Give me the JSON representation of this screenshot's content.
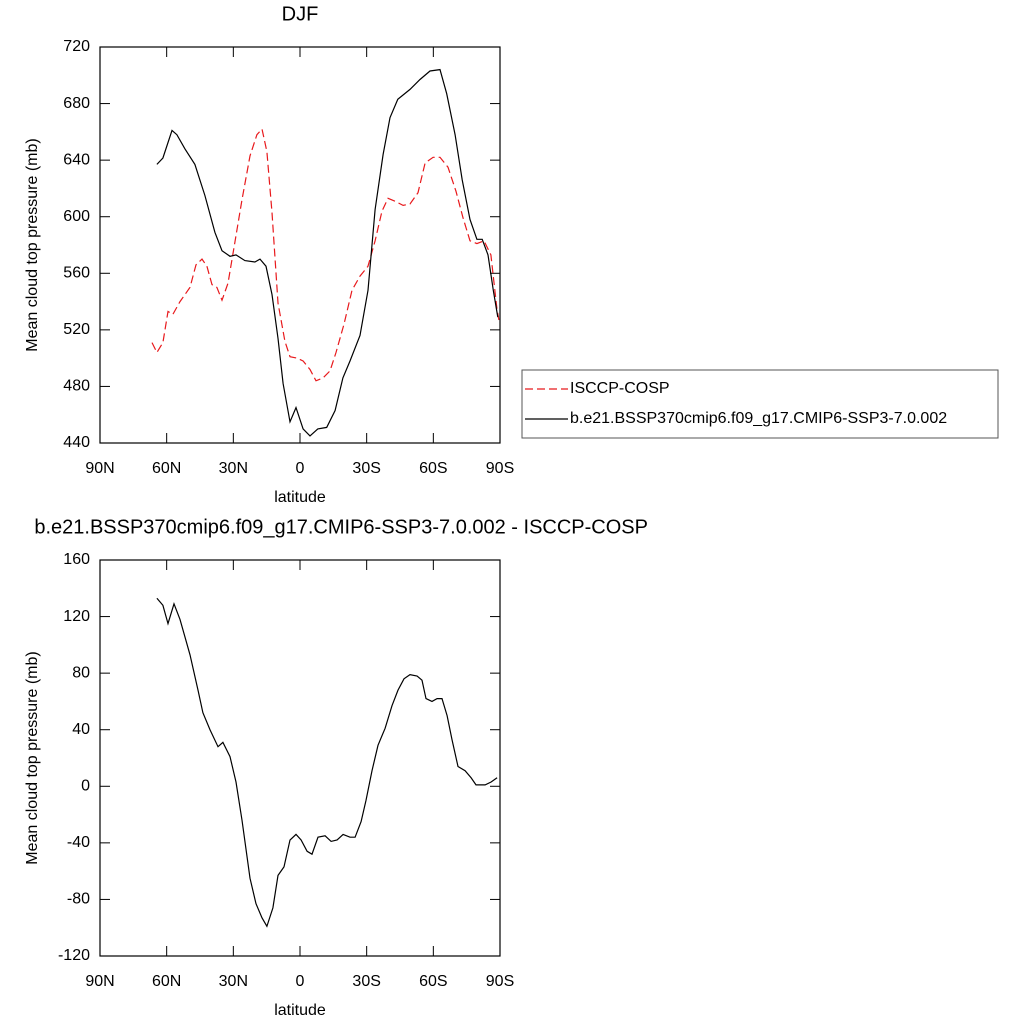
{
  "chart_data": [
    {
      "type": "line",
      "title": "DJF",
      "xlabel": "latitude",
      "ylabel": "Mean cloud top pressure (mb)",
      "xlim": [
        90,
        -90
      ],
      "xticks": [
        {
          "value": 90,
          "label": "90N"
        },
        {
          "value": 60,
          "label": "60N"
        },
        {
          "value": 30,
          "label": "30N"
        },
        0,
        {
          "value": -30,
          "label": "30S"
        },
        {
          "value": -60,
          "label": "60S"
        },
        {
          "value": -90,
          "label": "90S"
        }
      ],
      "ylim": [
        440,
        720
      ],
      "yticks": [
        440,
        480,
        520,
        560,
        600,
        640,
        680,
        720
      ],
      "legend": "right",
      "series": [
        {
          "name": "ISCCP-COSP",
          "color": "#e8191c",
          "dashed": true,
          "x": [
            66.6,
            64.4,
            61.7,
            59.4,
            57.2,
            54,
            49.5,
            46.8,
            44.1,
            41.9,
            39.6,
            37.4,
            35.1,
            32.4,
            29.3,
            26.1,
            22.5,
            19.4,
            17.1,
            14.9,
            12.6,
            9.9,
            6.8,
            4.5,
            1.4,
            -1.4,
            -4.5,
            -7.2,
            -10.4,
            -13.5,
            -16.2,
            -19.8,
            -23.4,
            -27,
            -30.6,
            -33.8,
            -36.9,
            -39.6,
            -42.8,
            -46.4,
            -49.5,
            -53.1,
            -56.3,
            -59.9,
            -63,
            -66.6,
            -70.2,
            -73.4,
            -76.5,
            -79.6,
            -82.8,
            -85.9,
            -88.6,
            -89.5
          ],
          "values": [
            511,
            504,
            511,
            533,
            531,
            540,
            550,
            566,
            570,
            565,
            552,
            550,
            541,
            553,
            582,
            612,
            643,
            658,
            662,
            646,
            603,
            539,
            512,
            501,
            500,
            498,
            492,
            484,
            486,
            491,
            504,
            524,
            548,
            558,
            565,
            583,
            604,
            613,
            611,
            608,
            609,
            617,
            638,
            642,
            642,
            635,
            618,
            599,
            583,
            581,
            583,
            573,
            535,
            527
          ]
        },
        {
          "name": "b.e21.BSSP370cmip6.f09_g17.CMIP6-SSP3-7.0.002",
          "color": "#000000",
          "dashed": false,
          "x": [
            64.4,
            61.7,
            57.6,
            55.4,
            51.8,
            47.3,
            42.8,
            38.3,
            35.1,
            31.5,
            28.8,
            24.8,
            20.3,
            18,
            15.3,
            12.6,
            9.9,
            7.6,
            4.5,
            1.8,
            -1.4,
            -4.5,
            -8,
            -12,
            -15.8,
            -19.3,
            -22.5,
            -27,
            -30.6,
            -33.8,
            -37.4,
            -40.5,
            -44,
            -49.5,
            -54,
            -58.5,
            -63,
            -66,
            -69.8,
            -73,
            -76.5,
            -79.6,
            -82,
            -84.6,
            -87,
            -89
          ],
          "values": [
            637,
            641.5,
            661,
            658,
            648,
            637,
            615,
            589,
            576,
            572,
            573,
            569,
            568,
            570,
            565,
            545,
            514,
            482,
            455,
            465,
            450,
            445,
            450,
            451,
            463,
            486,
            498,
            516,
            548,
            605,
            644,
            670,
            683,
            690,
            697,
            703,
            704,
            687,
            658,
            626,
            598,
            584,
            584,
            573,
            548,
            529
          ]
        }
      ]
    },
    {
      "type": "line",
      "title": "b.e21.BSSP370cmip6.f09_g17.CMIP6-SSP3-7.0.002 - ISCCP-COSP",
      "xlabel": "latitude",
      "ylabel": "Mean cloud top pressure (mb)",
      "xlim": [
        90,
        -90
      ],
      "xticks": [
        {
          "value": 90,
          "label": "90N"
        },
        {
          "value": 60,
          "label": "60N"
        },
        {
          "value": 30,
          "label": "30N"
        },
        0,
        {
          "value": -30,
          "label": "30S"
        },
        {
          "value": -60,
          "label": "60S"
        },
        {
          "value": -90,
          "label": "90S"
        }
      ],
      "ylim": [
        -120,
        160
      ],
      "yticks": [
        -120,
        -80,
        -40,
        0,
        40,
        80,
        120,
        160
      ],
      "series": [
        {
          "color": "#000000",
          "dashed": false,
          "x": [
            64.4,
            61.7,
            59.4,
            56.7,
            54,
            49.5,
            45.9,
            43.7,
            40.5,
            36.9,
            34.7,
            31.5,
            28.8,
            26.1,
            22.5,
            19.8,
            17.1,
            14.9,
            12.2,
            9.9,
            7.2,
            4.5,
            1.8,
            -0.5,
            -3.2,
            -5.4,
            -8.1,
            -11.3,
            -14,
            -16.7,
            -19.4,
            -22.5,
            -24.8,
            -27.5,
            -29.7,
            -32.4,
            -35.1,
            -38.3,
            -41.4,
            -44.1,
            -46.8,
            -49.5,
            -52.7,
            -54.9,
            -56.7,
            -59.4,
            -61.7,
            -63.9,
            -66.2,
            -68.4,
            -71.1,
            -74.3,
            -77,
            -79.2,
            -83.3,
            -86,
            -88.7
          ],
          "values": [
            133,
            128,
            115,
            129,
            118,
            93,
            68,
            52,
            40,
            28,
            31,
            21,
            3,
            -24,
            -65,
            -83,
            -93,
            -99,
            -86,
            -63,
            -57,
            -38,
            -34,
            -38,
            -46,
            -48,
            -36,
            -35,
            -39,
            -38,
            -34,
            -36,
            -36,
            -25,
            -10,
            11,
            29,
            41,
            57,
            68,
            76,
            79,
            78,
            75,
            62,
            60,
            62,
            62,
            50,
            33,
            14,
            11,
            6,
            1,
            1,
            3,
            6
          ]
        }
      ]
    }
  ]
}
